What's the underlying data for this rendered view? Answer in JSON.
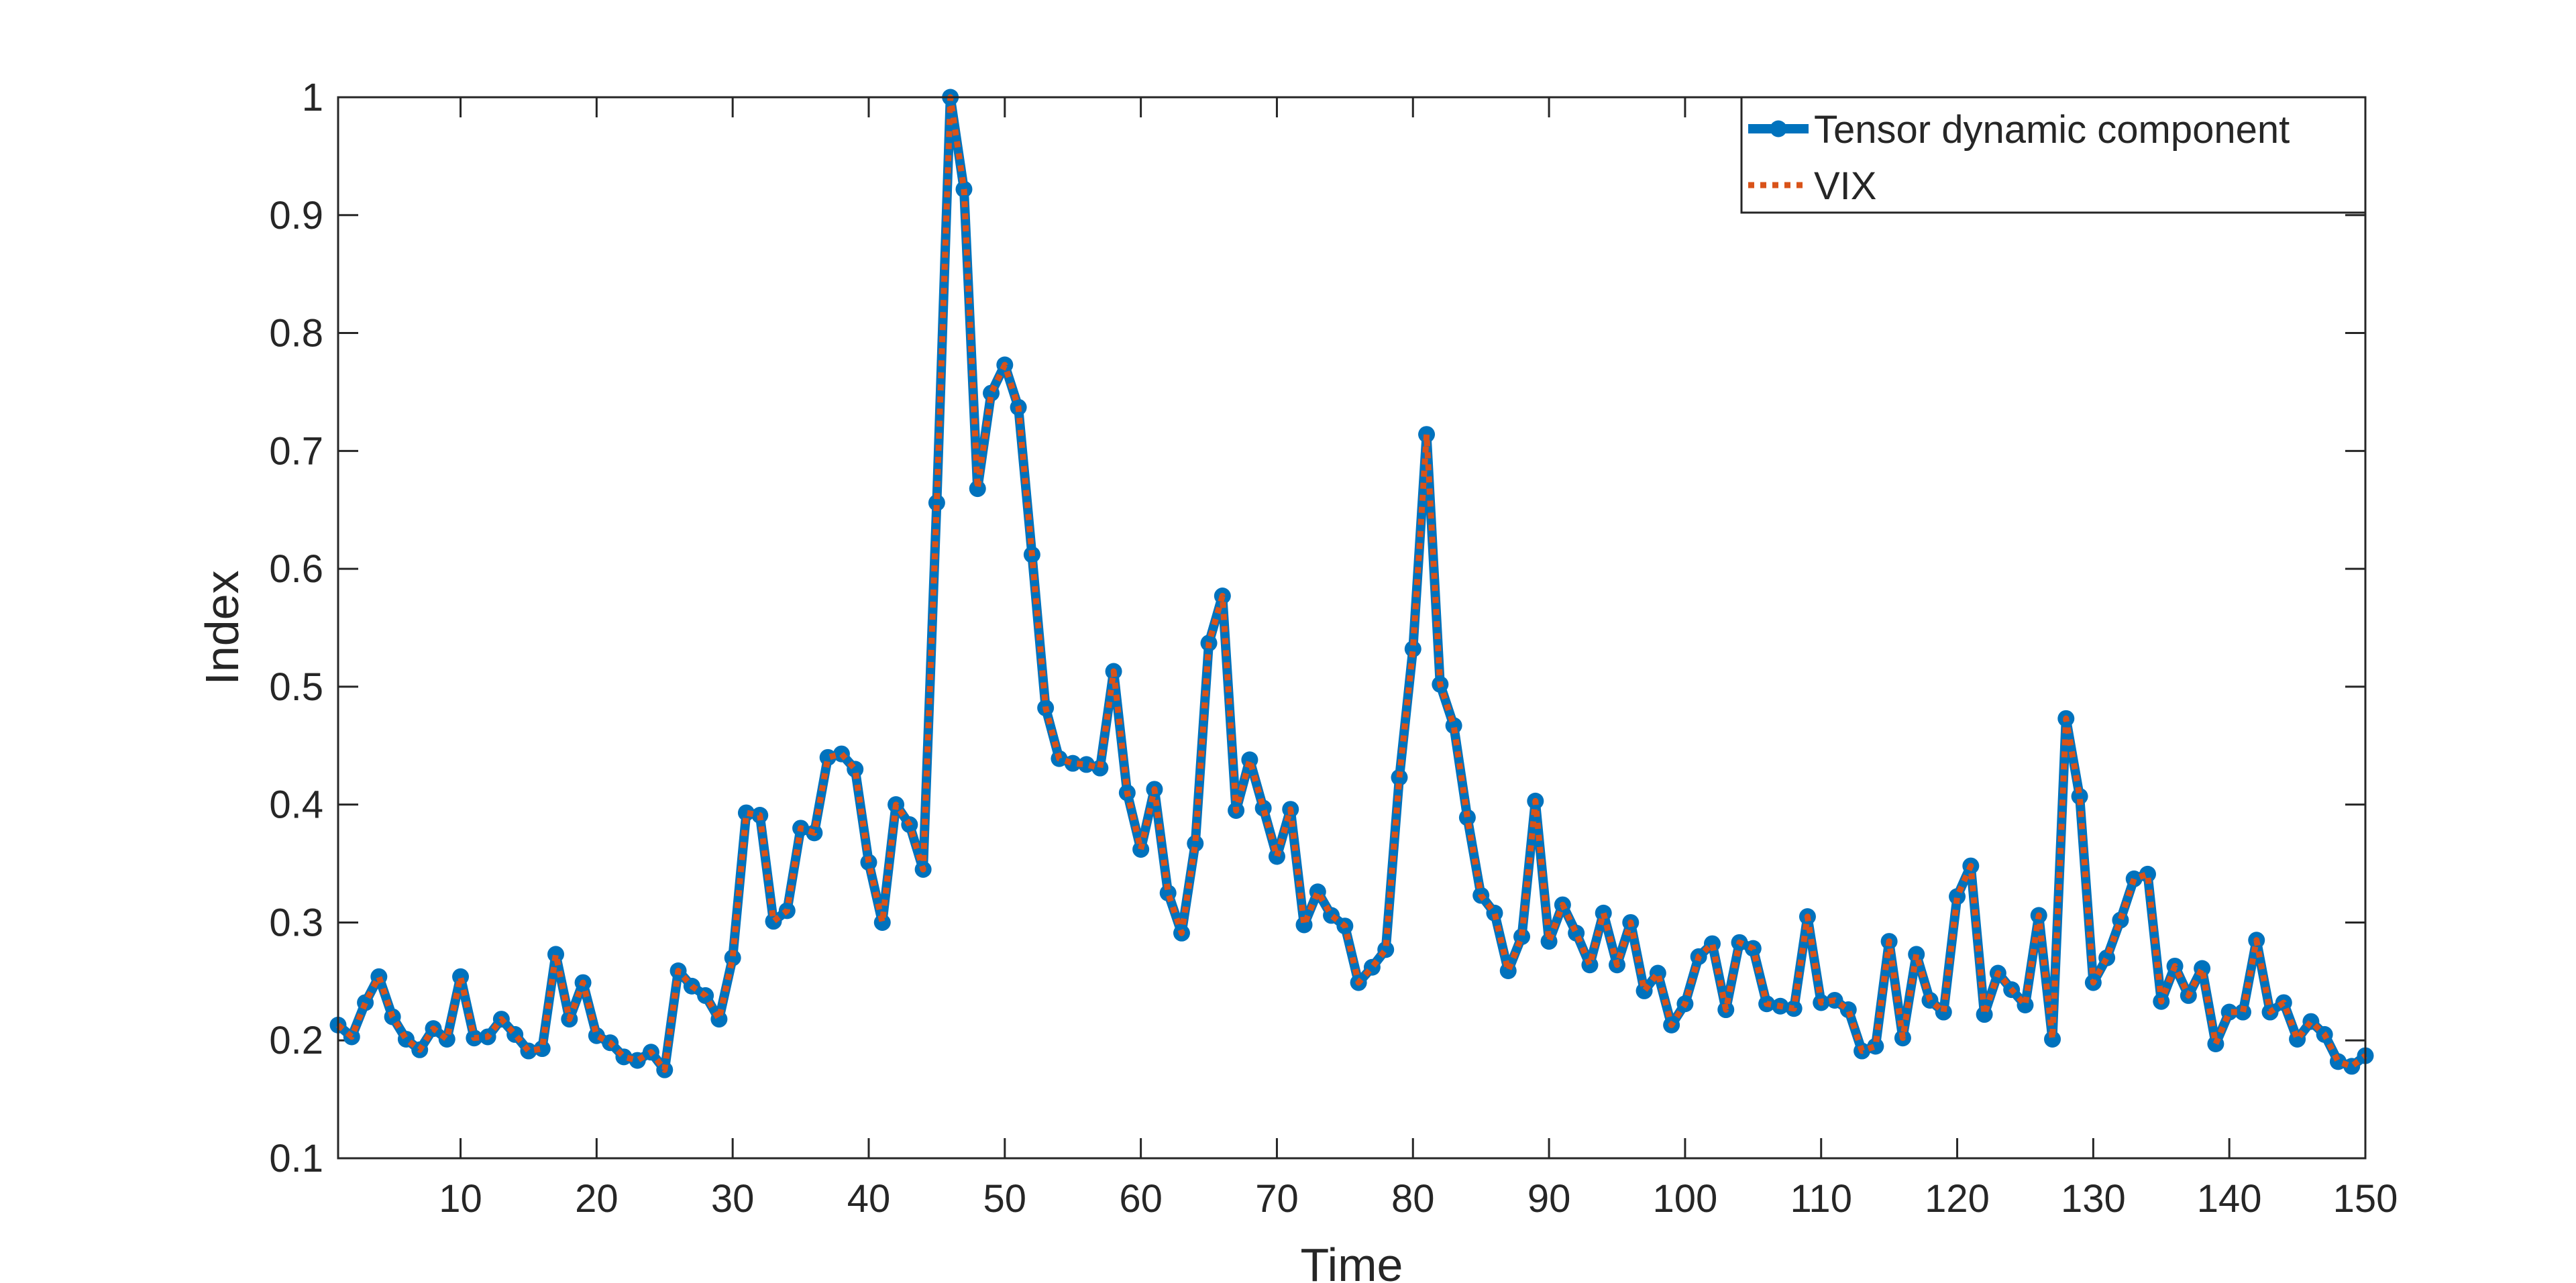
{
  "chart_data": {
    "type": "line",
    "title": "",
    "xlabel": "Time",
    "ylabel": "Index",
    "xlim": [
      1,
      150
    ],
    "ylim": [
      0.1,
      1
    ],
    "xticks": [
      10,
      20,
      30,
      40,
      50,
      60,
      70,
      80,
      90,
      100,
      110,
      120,
      130,
      140,
      150
    ],
    "xtick_labels": [
      "10",
      "20",
      "30",
      "40",
      "50",
      "60",
      "70",
      "80",
      "90",
      "100",
      "110",
      "120",
      "130",
      "140",
      "150"
    ],
    "yticks": [
      0.1,
      0.2,
      0.3,
      0.4,
      0.5,
      0.6,
      0.7,
      0.8,
      0.9,
      1
    ],
    "ytick_labels": [
      "0.1",
      "0.2",
      "0.3",
      "0.4",
      "0.5",
      "0.6",
      "0.7",
      "0.8",
      "0.9",
      "1"
    ],
    "grid": false,
    "legend_position": "top-right",
    "x": [
      1,
      2,
      3,
      4,
      5,
      6,
      7,
      8,
      9,
      10,
      11,
      12,
      13,
      14,
      15,
      16,
      17,
      18,
      19,
      20,
      21,
      22,
      23,
      24,
      25,
      26,
      27,
      28,
      29,
      30,
      31,
      32,
      33,
      34,
      35,
      36,
      37,
      38,
      39,
      40,
      41,
      42,
      43,
      44,
      45,
      46,
      47,
      48,
      49,
      50,
      51,
      52,
      53,
      54,
      55,
      56,
      57,
      58,
      59,
      60,
      61,
      62,
      63,
      64,
      65,
      66,
      67,
      68,
      69,
      70,
      71,
      72,
      73,
      74,
      75,
      76,
      77,
      78,
      79,
      80,
      81,
      82,
      83,
      84,
      85,
      86,
      87,
      88,
      89,
      90,
      91,
      92,
      93,
      94,
      95,
      96,
      97,
      98,
      99,
      100,
      101,
      102,
      103,
      104,
      105,
      106,
      107,
      108,
      109,
      110,
      111,
      112,
      113,
      114,
      115,
      116,
      117,
      118,
      119,
      120,
      121,
      122,
      123,
      124,
      125,
      126,
      127,
      128,
      129,
      130,
      131,
      132,
      133,
      134,
      135,
      136,
      137,
      138,
      139,
      140,
      141,
      142,
      143,
      144,
      145,
      146,
      147,
      148,
      149,
      150
    ],
    "series": [
      {
        "name": "Tensor dynamic component",
        "color": "#0072BD",
        "style": "solid-marker",
        "values": [
          0.213,
          0.203,
          0.232,
          0.254,
          0.22,
          0.201,
          0.192,
          0.21,
          0.201,
          0.254,
          0.202,
          0.203,
          0.218,
          0.205,
          0.191,
          0.193,
          0.273,
          0.218,
          0.249,
          0.204,
          0.198,
          0.186,
          0.183,
          0.19,
          0.175,
          0.259,
          0.246,
          0.238,
          0.218,
          0.27,
          0.393,
          0.391,
          0.301,
          0.31,
          0.38,
          0.376,
          0.44,
          0.443,
          0.43,
          0.351,
          0.3,
          0.4,
          0.383,
          0.345,
          0.656,
          1.0,
          0.922,
          0.668,
          0.749,
          0.773,
          0.737,
          0.612,
          0.482,
          0.439,
          0.435,
          0.434,
          0.431,
          0.513,
          0.41,
          0.362,
          0.413,
          0.325,
          0.291,
          0.367,
          0.537,
          0.577,
          0.395,
          0.438,
          0.397,
          0.356,
          0.396,
          0.298,
          0.326,
          0.306,
          0.297,
          0.249,
          0.262,
          0.277,
          0.423,
          0.532,
          0.714,
          0.502,
          0.467,
          0.389,
          0.323,
          0.308,
          0.259,
          0.288,
          0.403,
          0.284,
          0.315,
          0.291,
          0.264,
          0.308,
          0.264,
          0.3,
          0.242,
          0.257,
          0.213,
          0.231,
          0.271,
          0.282,
          0.226,
          0.283,
          0.278,
          0.231,
          0.229,
          0.227,
          0.305,
          0.232,
          0.234,
          0.226,
          0.191,
          0.195,
          0.284,
          0.202,
          0.273,
          0.234,
          0.224,
          0.322,
          0.348,
          0.222,
          0.257,
          0.243,
          0.23,
          0.306,
          0.201,
          0.473,
          0.407,
          0.249,
          0.27,
          0.302,
          0.337,
          0.341,
          0.233,
          0.263,
          0.238,
          0.261,
          0.197,
          0.224,
          0.224,
          0.285,
          0.224,
          0.232,
          0.201,
          0.216,
          0.205,
          0.182,
          0.178,
          0.187
        ]
      },
      {
        "name": "VIX",
        "color": "#D95319",
        "style": "dotted",
        "values": [
          0.213,
          0.203,
          0.232,
          0.254,
          0.22,
          0.201,
          0.192,
          0.21,
          0.201,
          0.254,
          0.202,
          0.203,
          0.218,
          0.205,
          0.191,
          0.193,
          0.273,
          0.218,
          0.249,
          0.204,
          0.198,
          0.186,
          0.183,
          0.19,
          0.175,
          0.259,
          0.246,
          0.238,
          0.218,
          0.27,
          0.393,
          0.391,
          0.301,
          0.31,
          0.38,
          0.376,
          0.44,
          0.443,
          0.43,
          0.351,
          0.3,
          0.4,
          0.383,
          0.345,
          0.656,
          1.0,
          0.922,
          0.668,
          0.749,
          0.773,
          0.737,
          0.612,
          0.482,
          0.439,
          0.435,
          0.434,
          0.431,
          0.513,
          0.41,
          0.362,
          0.413,
          0.325,
          0.291,
          0.367,
          0.537,
          0.577,
          0.395,
          0.438,
          0.397,
          0.356,
          0.396,
          0.298,
          0.326,
          0.306,
          0.297,
          0.249,
          0.262,
          0.277,
          0.423,
          0.532,
          0.714,
          0.502,
          0.467,
          0.389,
          0.323,
          0.308,
          0.259,
          0.288,
          0.403,
          0.284,
          0.315,
          0.291,
          0.264,
          0.308,
          0.264,
          0.3,
          0.242,
          0.257,
          0.213,
          0.231,
          0.271,
          0.282,
          0.226,
          0.283,
          0.278,
          0.231,
          0.229,
          0.227,
          0.305,
          0.232,
          0.234,
          0.226,
          0.191,
          0.195,
          0.284,
          0.202,
          0.273,
          0.234,
          0.224,
          0.322,
          0.348,
          0.222,
          0.257,
          0.243,
          0.23,
          0.306,
          0.201,
          0.473,
          0.407,
          0.249,
          0.27,
          0.302,
          0.337,
          0.341,
          0.233,
          0.263,
          0.238,
          0.261,
          0.197,
          0.224,
          0.224,
          0.285,
          0.224,
          0.232,
          0.201,
          0.216,
          0.205,
          0.182,
          0.178,
          0.187
        ]
      }
    ]
  }
}
